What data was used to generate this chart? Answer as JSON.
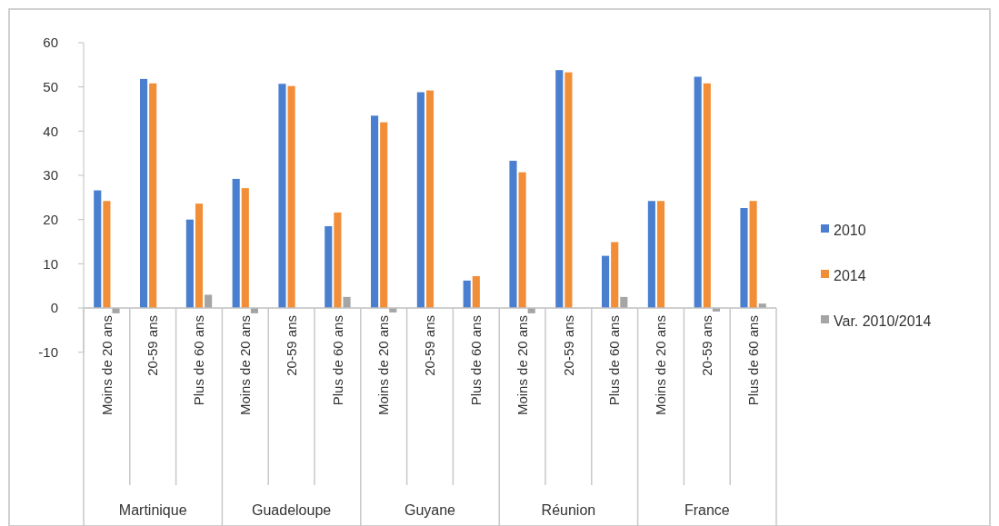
{
  "chart_data": {
    "type": "bar",
    "categories": [
      "Moins de 20 ans",
      "20-59 ans",
      "Plus de 60 ans",
      "Moins de 20 ans",
      "20-59 ans",
      "Plus de 60 ans",
      "Moins de 20 ans",
      "20-59 ans",
      "Plus de 60 ans",
      "Moins de 20 ans",
      "20-59 ans",
      "Plus de 60 ans",
      "Moins de 20 ans",
      "20-59 ans",
      "Plus de 60 ans"
    ],
    "series": [
      {
        "name": "2010",
        "color": "#4a7fcf",
        "values": [
          26.6,
          51.8,
          20.0,
          29.2,
          50.7,
          18.5,
          43.5,
          48.8,
          6.2,
          33.3,
          53.8,
          11.8,
          24.2,
          52.3,
          22.6
        ]
      },
      {
        "name": "2014",
        "color": "#f28e37",
        "values": [
          24.2,
          50.8,
          23.6,
          27.1,
          50.2,
          21.6,
          42.0,
          49.2,
          7.2,
          30.7,
          53.3,
          14.9,
          24.2,
          50.8,
          24.2
        ]
      },
      {
        "name": "Var. 2010/2014",
        "color": "#a5a5a5",
        "values": [
          -1.2,
          null,
          3.0,
          -1.2,
          null,
          2.5,
          -1.0,
          null,
          null,
          -1.2,
          null,
          2.5,
          0.0,
          -0.8,
          1.0
        ]
      }
    ],
    "annotations": [
      "Martinique",
      "Guadeloupe",
      "Guyane",
      "Réunion",
      "France"
    ],
    "ylim": [
      -10,
      60
    ],
    "yticks": [
      -10,
      0,
      10,
      20,
      30,
      40,
      50,
      60
    ],
    "grid": false,
    "legend": "right"
  }
}
